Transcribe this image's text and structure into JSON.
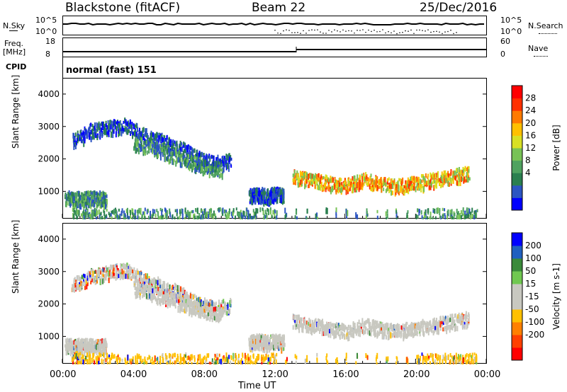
{
  "header": {
    "station": "Blackstone (fitACF)",
    "beam": "Beam 22",
    "date": "25/Dec/2016"
  },
  "status": {
    "nsky_label": "N.Sky",
    "nsearch_label": "N.Search",
    "freq_label": "Freq.",
    "freq_unit": "[MHz]",
    "nave_label": "Nave",
    "cpid_label": "CPID",
    "cpid_text": "normal (fast) 151",
    "noise_ticks_left": [
      "10^5",
      "10^0"
    ],
    "noise_ticks_right": [
      "10^5",
      "10^0"
    ],
    "freq_ticks": [
      "18",
      "8"
    ],
    "nave_ticks": [
      "60",
      "0"
    ]
  },
  "time_axis": {
    "label": "Time UT",
    "ticks": [
      "00:00",
      "04:00",
      "08:00",
      "12:00",
      "16:00",
      "20:00",
      "00:00"
    ]
  },
  "chart_data": [
    {
      "type": "heatmap",
      "parameter": "power",
      "ylabel": "Slant Range [km]",
      "ylim": [
        180,
        4500
      ],
      "xlim_hours": [
        0,
        24
      ],
      "yticks": [
        1000,
        2000,
        3000,
        4000
      ],
      "colorbar": {
        "label": "Power [dB]",
        "ticks": [
          "28",
          "24",
          "20",
          "16",
          "12",
          "8",
          "4"
        ],
        "colors": [
          "#0000ff",
          "#2c55c2",
          "#2a7f4f",
          "#4fa260",
          "#78c256",
          "#d8e024",
          "#ffc000",
          "#ff7a00",
          "#ff3000",
          "#ff0000"
        ]
      },
      "echo_regions": [
        {
          "name": "band-2500-morning",
          "t": [
            0.5,
            1.5,
            2.5,
            3.5,
            4.5,
            5.5,
            6.5,
            7.5,
            8.5,
            9.5
          ],
          "range_km": [
            2600,
            2900,
            3000,
            3100,
            2800,
            2600,
            2400,
            2100,
            1900,
            2000
          ],
          "level": "low"
        },
        {
          "name": "band-1800-dawn",
          "t": [
            4.0,
            5.0,
            6.0,
            7.0,
            8.0,
            9.0
          ],
          "range_km": [
            2500,
            2400,
            2200,
            2000,
            1800,
            1700
          ],
          "level": "mid"
        },
        {
          "name": "band-800-early",
          "t": [
            0.1,
            0.6,
            1.1,
            1.6,
            2.1,
            2.4
          ],
          "range_km": [
            850,
            800,
            820,
            830,
            820,
            800
          ],
          "level": "mid"
        },
        {
          "name": "band-900-noon",
          "t": [
            10.5,
            11.0,
            11.5,
            12.0,
            12.5
          ],
          "range_km": [
            900,
            950,
            900,
            950,
            900
          ],
          "level": "low"
        },
        {
          "name": "band-1300-afternoon",
          "t": [
            13.0,
            14.0,
            15.0,
            16.0,
            17.0,
            18.0,
            19.0,
            20.0,
            21.0,
            22.0,
            23.0
          ],
          "range_km": [
            1500,
            1400,
            1300,
            1200,
            1400,
            1250,
            1200,
            1300,
            1400,
            1500,
            1600
          ],
          "level": "high"
        },
        {
          "name": "ground-scatter-300",
          "t": [
            0.5,
            2.0,
            4.0,
            6.0,
            8.0,
            10.0,
            12.0,
            20.0,
            22.0,
            23.5
          ],
          "range_km": [
            300,
            300,
            300,
            300,
            300,
            300,
            300,
            300,
            300,
            300
          ],
          "level": "mid"
        }
      ]
    },
    {
      "type": "heatmap",
      "parameter": "velocity",
      "ylabel": "Slant Range [km]",
      "ylim": [
        180,
        4500
      ],
      "xlim_hours": [
        0,
        24
      ],
      "yticks": [
        1000,
        2000,
        3000,
        4000
      ],
      "colorbar": {
        "label": "Velocity [m s-1]",
        "ticks": [
          "200",
          "100",
          "50",
          "15",
          "-15",
          "-50",
          "-100",
          "-200"
        ],
        "colors": [
          "#ff0000",
          "#ff4000",
          "#ff8000",
          "#ffc000",
          "#c8c8c0",
          "#c8c8c0",
          "#70c850",
          "#3a8a3a",
          "#2060c0",
          "#0000ff"
        ]
      },
      "echo_regions": [
        {
          "name": "band-2500-morning",
          "t": [
            0.5,
            1.5,
            2.5,
            3.5,
            4.5,
            5.5,
            6.5,
            7.5,
            8.5,
            9.5
          ],
          "range_km": [
            2600,
            2900,
            3000,
            3100,
            2800,
            2600,
            2400,
            2100,
            1900,
            2000
          ],
          "level": "mixed"
        },
        {
          "name": "band-1800-dawn",
          "t": [
            4.0,
            5.0,
            6.0,
            7.0,
            8.0,
            9.0
          ],
          "range_km": [
            2500,
            2400,
            2200,
            2000,
            1800,
            1700
          ],
          "level": "ground"
        },
        {
          "name": "band-800-early",
          "t": [
            0.1,
            0.6,
            1.1,
            1.6,
            2.1,
            2.4
          ],
          "range_km": [
            800,
            750,
            750,
            750,
            750,
            750
          ],
          "level": "ground"
        },
        {
          "name": "band-900-noon",
          "t": [
            10.5,
            11.0,
            11.5,
            12.0,
            12.5
          ],
          "range_km": [
            850,
            900,
            850,
            900,
            850
          ],
          "level": "ground"
        },
        {
          "name": "band-1300-afternoon",
          "t": [
            13.0,
            14.0,
            15.0,
            16.0,
            17.0,
            18.0,
            19.0,
            20.0,
            21.0,
            22.0,
            23.0
          ],
          "range_km": [
            1500,
            1400,
            1300,
            1200,
            1400,
            1250,
            1200,
            1300,
            1400,
            1500,
            1600
          ],
          "level": "ground"
        },
        {
          "name": "ground-scatter-300",
          "t": [
            0.5,
            2.0,
            4.0,
            6.0,
            8.0,
            10.0,
            12.0,
            20.0,
            22.0,
            23.5
          ],
          "range_km": [
            350,
            300,
            300,
            300,
            300,
            300,
            300,
            300,
            300,
            300
          ],
          "level": "away"
        }
      ]
    }
  ]
}
